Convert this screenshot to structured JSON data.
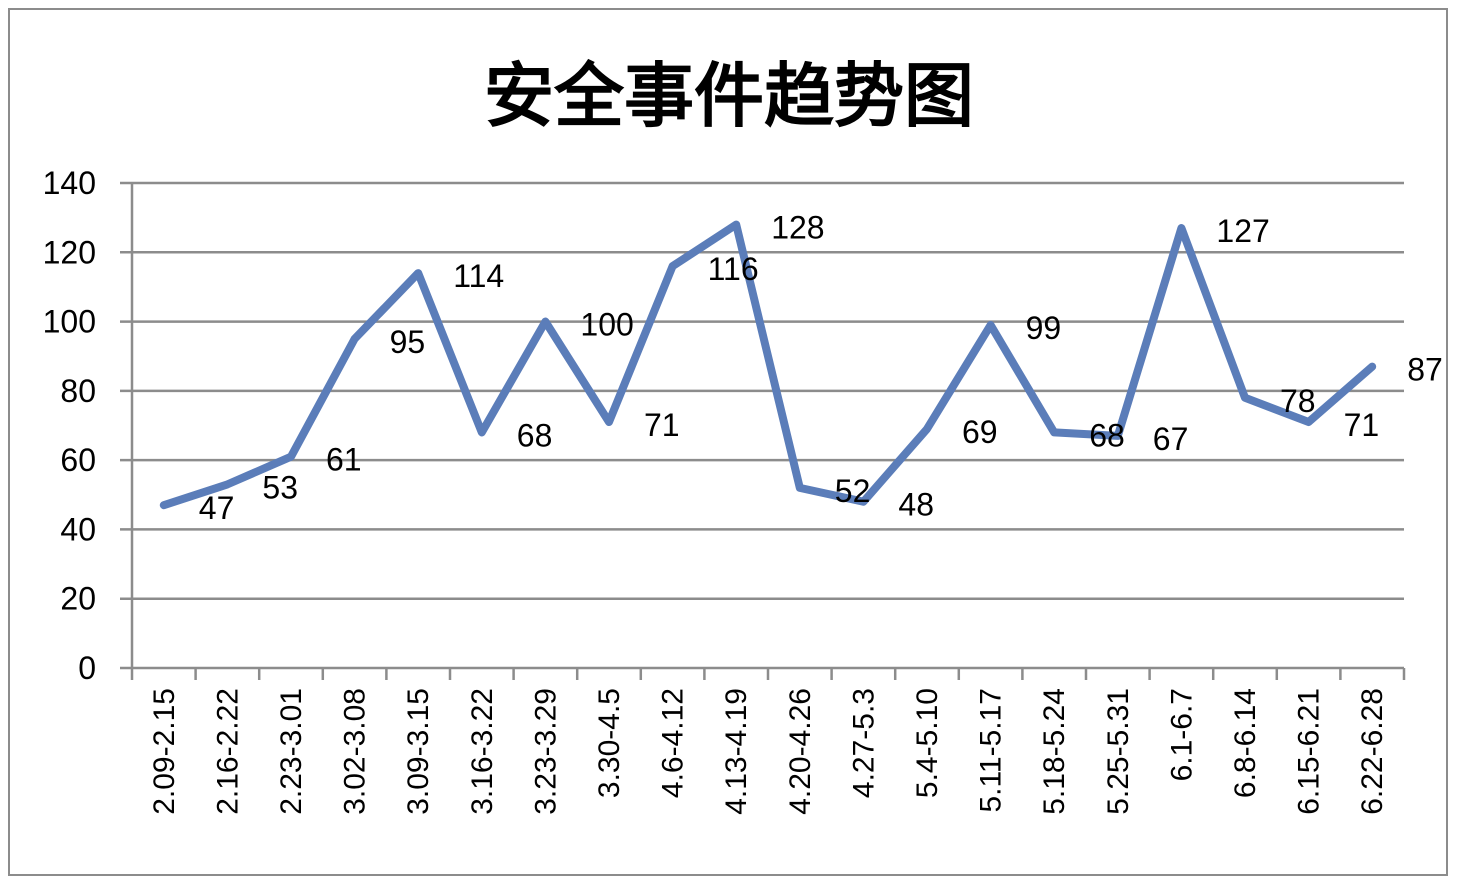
{
  "chart_data": {
    "type": "line",
    "title": "安全事件趋势图",
    "xlabel": "",
    "ylabel": "",
    "ylim": [
      0,
      140
    ],
    "yticks": [
      0,
      20,
      40,
      60,
      80,
      100,
      120,
      140
    ],
    "grid": true,
    "legend": "none",
    "categories": [
      "2.09-2.15",
      "2.16-2.22",
      "2.23-3.01",
      "3.02-3.08",
      "3.09-3.15",
      "3.16-3.22",
      "3.23-3.29",
      "3.30-4.5",
      "4.6-4.12",
      "4.13-4.19",
      "4.20-4.26",
      "4.27-5.3",
      "5.4-5.10",
      "5.11-5.17",
      "5.18-5.24",
      "5.25-5.31",
      "6.1-6.7",
      "6.8-6.14",
      "6.15-6.21",
      "6.22-6.28"
    ],
    "series": [
      {
        "values": [
          47,
          53,
          61,
          95,
          114,
          68,
          100,
          71,
          116,
          128,
          52,
          48,
          69,
          99,
          68,
          67,
          127,
          78,
          71,
          87
        ]
      }
    ],
    "line_color": "#5B7DB9"
  }
}
